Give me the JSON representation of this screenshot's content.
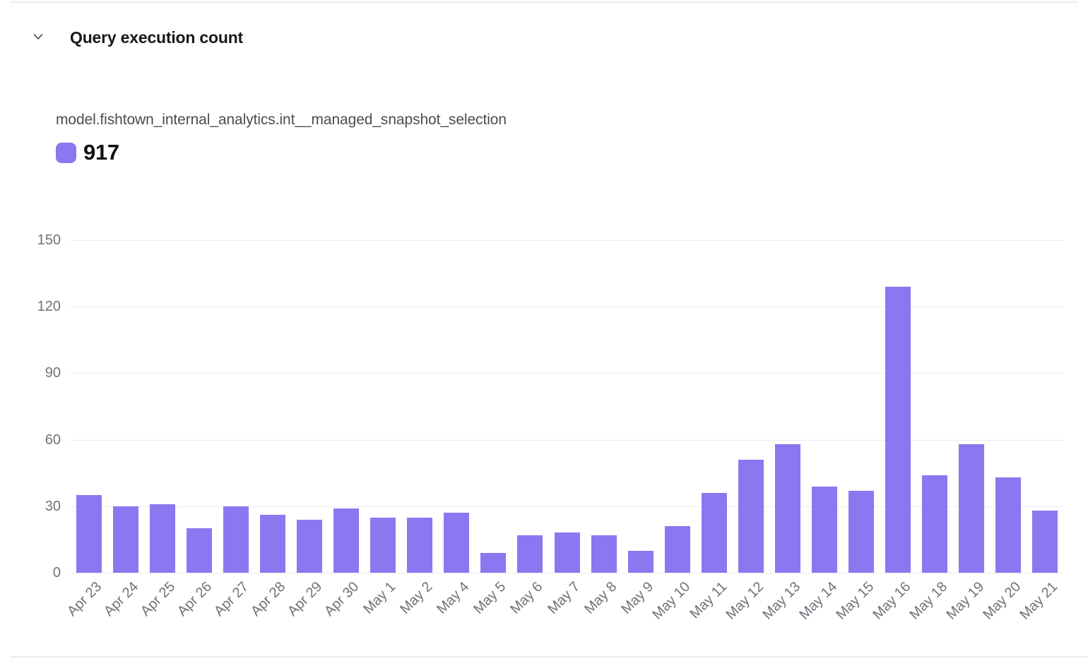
{
  "header": {
    "title": "Query execution count"
  },
  "legend": {
    "series_name": "model.fishtown_internal_analytics.int__managed_snapshot_selection",
    "total": "917",
    "swatch_color": "#8C77F0"
  },
  "chart_data": {
    "type": "bar",
    "title": "Query execution count",
    "series_label": "model.fishtown_internal_analytics.int__managed_snapshot_selection",
    "series_total": 917,
    "categories": [
      "Apr 23",
      "Apr 24",
      "Apr 25",
      "Apr 26",
      "Apr 27",
      "Apr 28",
      "Apr 29",
      "Apr 30",
      "May 1",
      "May 2",
      "May 4",
      "May 5",
      "May 6",
      "May 7",
      "May 8",
      "May 9",
      "May 10",
      "May 11",
      "May 12",
      "May 13",
      "May 14",
      "May 15",
      "May 16",
      "May 18",
      "May 19",
      "May 20",
      "May 21"
    ],
    "values": [
      35,
      30,
      31,
      20,
      30,
      26,
      24,
      29,
      25,
      25,
      27,
      9,
      17,
      18,
      17,
      10,
      21,
      36,
      51,
      58,
      39,
      37,
      129,
      44,
      58,
      43,
      28
    ],
    "xlabel": "",
    "ylabel": "",
    "ylim": [
      0,
      150
    ],
    "yticks": [
      0,
      30,
      60,
      90,
      120,
      150
    ],
    "grid": "horizontal",
    "legend_position": "top-left",
    "bar_color": "#8C77F0",
    "x_label_rotation_deg": -45
  },
  "colors": {
    "bar": "#8C77F0",
    "gridline": "#EBEBEE",
    "axis_label": "#71717A",
    "title": "#17181D",
    "legend_label": "#4B4C53",
    "legend_value": "#0F1016",
    "divider": "#ECECEF",
    "background": "#FFFFFF"
  }
}
